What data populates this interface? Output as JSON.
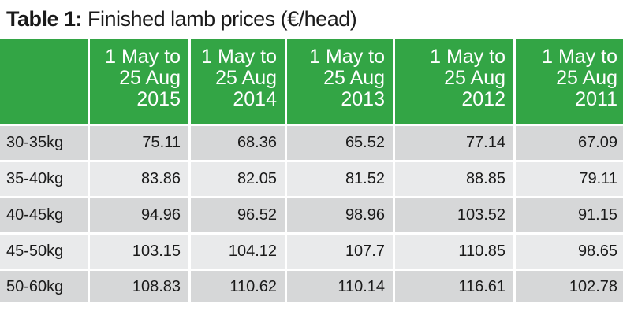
{
  "title": {
    "label": "Table 1:",
    "text": "Finished lamb prices (€/head)"
  },
  "columns": [
    [
      "1 May to",
      "25 Aug",
      "2015"
    ],
    [
      "1 May to",
      "25 Aug",
      "2014"
    ],
    [
      "1 May to",
      "25 Aug",
      "2013"
    ],
    [
      "1 May to",
      "25 Aug",
      "2012"
    ],
    [
      "1 May to",
      "25 Aug",
      "2011"
    ]
  ],
  "rows": [
    {
      "label": "30-35kg",
      "values": [
        "75.11",
        "68.36",
        "65.52",
        "77.14",
        "67.09"
      ]
    },
    {
      "label": "35-40kg",
      "values": [
        "83.86",
        "82.05",
        "81.52",
        "88.85",
        "79.11"
      ]
    },
    {
      "label": "40-45kg",
      "values": [
        "94.96",
        "96.52",
        "98.96",
        "103.52",
        "91.15"
      ]
    },
    {
      "label": "45-50kg",
      "values": [
        "103.15",
        "104.12",
        "107.7",
        "110.85",
        "98.65"
      ]
    },
    {
      "label": "50-60kg",
      "values": [
        "108.83",
        "110.62",
        "110.14",
        "116.61",
        "102.78"
      ]
    }
  ],
  "colors": {
    "header_green": "#33a545",
    "row_dark": "#d6d7d8",
    "row_light": "#e9eaeb"
  }
}
